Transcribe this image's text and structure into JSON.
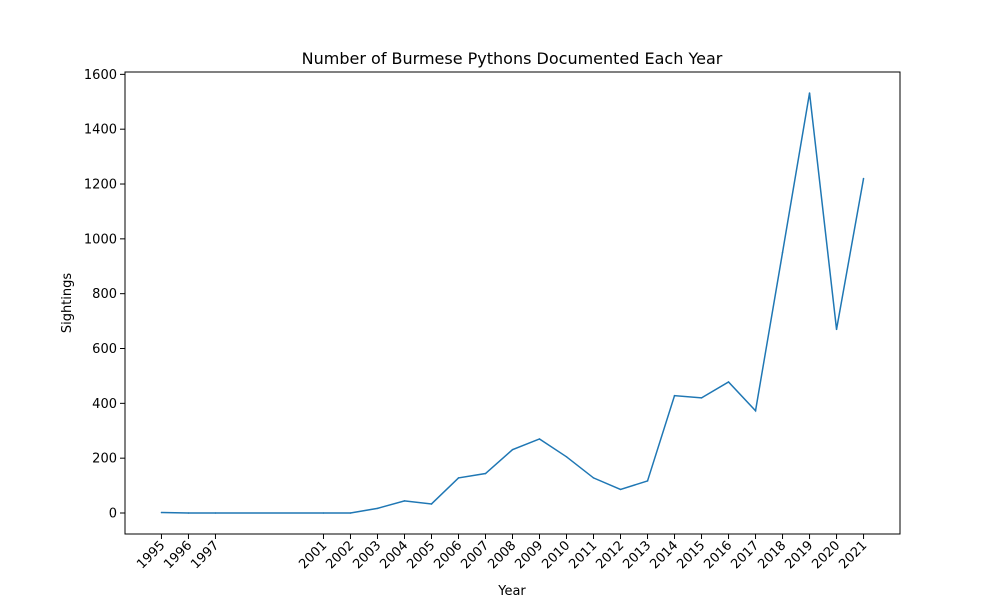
{
  "chart_data": {
    "type": "line",
    "title": "Number of Burmese Pythons Documented Each Year",
    "xlabel": "Year",
    "ylabel": "Sightings",
    "x": [
      1995,
      1996,
      1997,
      2001,
      2002,
      2003,
      2004,
      2005,
      2006,
      2007,
      2008,
      2009,
      2010,
      2011,
      2012,
      2013,
      2014,
      2015,
      2016,
      2017,
      2018,
      2019,
      2020,
      2021
    ],
    "x_tick_labels": [
      "1995",
      "1996",
      "1997",
      "2001",
      "2002",
      "2003",
      "2004",
      "2005",
      "2006",
      "2007",
      "2008",
      "2009",
      "2010",
      "2011",
      "2012",
      "2013",
      "2014",
      "2015",
      "2016",
      "2017",
      "2018",
      "2019",
      "2020",
      "2021"
    ],
    "series": [
      {
        "color": "#1f77b4",
        "values": [
          2,
          0,
          0,
          0,
          0,
          17,
          44,
          33,
          128,
          144,
          231,
          270,
          205,
          128,
          86,
          117,
          428,
          420,
          478,
          373,
          950,
          1532,
          670,
          1220
        ]
      }
    ],
    "y_ticks": [
      0,
      200,
      400,
      600,
      800,
      1000,
      1200,
      1400,
      1600
    ],
    "xlim": [
      1993.65,
      2022.35
    ],
    "ylim": [
      -76.6,
      1608.6
    ],
    "grid": false
  }
}
